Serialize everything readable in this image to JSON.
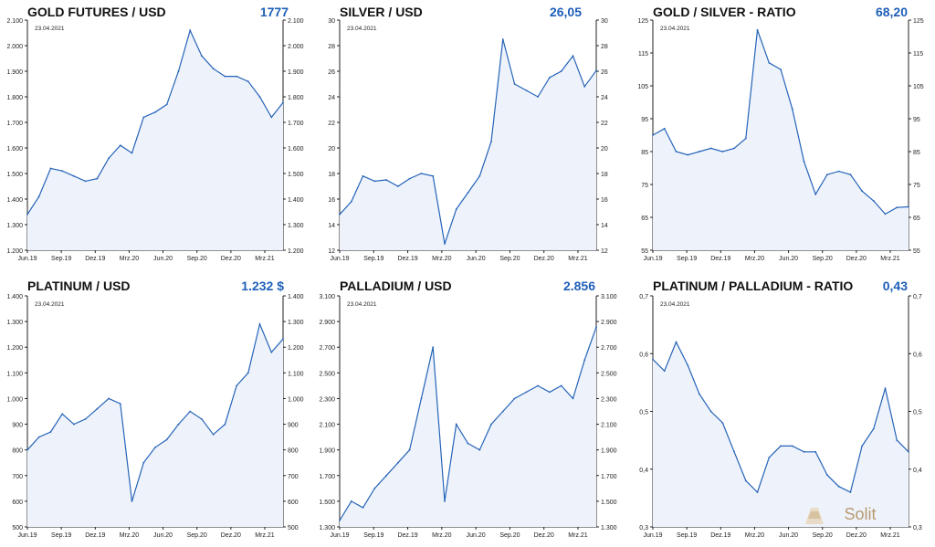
{
  "charts": [
    {
      "title": "GOLD FUTURES / USD",
      "value": "1777",
      "date": "23.04.2021",
      "ylim": [
        1200,
        2100
      ],
      "yticks": [
        "1.200",
        "1.300",
        "1.400",
        "1.500",
        "1.600",
        "1.700",
        "1.800",
        "1.900",
        "2.000",
        "2.100"
      ],
      "xticks": [
        "Jun.19",
        "Sep.19",
        "Dez.19",
        "Mrz.20",
        "Jun.20",
        "Sep.20",
        "Dez.20",
        "Mrz.21"
      ]
    },
    {
      "title": "SILVER / USD",
      "value": "26,05",
      "date": "23.04.2021",
      "ylim": [
        12,
        30
      ],
      "yticks": [
        "12",
        "14",
        "16",
        "18",
        "20",
        "22",
        "24",
        "26",
        "28",
        "30"
      ],
      "xticks": [
        "Jun.19",
        "Sep.19",
        "Dez.19",
        "Mrz.20",
        "Jun.20",
        "Sep.20",
        "Dez.20",
        "Mrz.21"
      ]
    },
    {
      "title": "GOLD / SILVER - RATIO",
      "value": "68,20",
      "date": "23.04.2021",
      "ylim": [
        55,
        125
      ],
      "yticks": [
        "55",
        "65",
        "75",
        "85",
        "95",
        "105",
        "115",
        "125"
      ],
      "xticks": [
        "Jun.19",
        "Sep.19",
        "Dez.19",
        "Mrz.20",
        "Jun.20",
        "Sep.20",
        "Dez.20",
        "Mrz.21"
      ]
    },
    {
      "title": "PLATINUM / USD",
      "value": "1.232 $",
      "date": "23.04.2021",
      "ylim": [
        500,
        1400
      ],
      "yticks": [
        "500",
        "600",
        "700",
        "800",
        "900",
        "1.000",
        "1.100",
        "1.200",
        "1.300",
        "1.400"
      ],
      "xticks": [
        "Jun.19",
        "Sep.19",
        "Dez.19",
        "Mrz.20",
        "Jun.20",
        "Sep.20",
        "Dez.20",
        "Mrz.21"
      ]
    },
    {
      "title": "PALLADIUM / USD",
      "value": "2.856",
      "date": "23.04.2021",
      "ylim": [
        1300,
        3100
      ],
      "yticks": [
        "1.300",
        "1.500",
        "1.700",
        "1.900",
        "2.100",
        "2.300",
        "2.500",
        "2.700",
        "2.900",
        "3.100"
      ],
      "xticks": [
        "Jun.19",
        "Sep.19",
        "Dez.19",
        "Mrz.20",
        "Jun.20",
        "Sep.20",
        "Dez.20",
        "Mrz.21"
      ]
    },
    {
      "title": "PLATINUM / PALLADIUM - RATIO",
      "value": "0,43",
      "date": "23.04.2021",
      "ylim": [
        0.3,
        0.7
      ],
      "yticks": [
        "0,3",
        "0,4",
        "0,5",
        "0,6",
        "0,7"
      ],
      "xticks": [
        "Jun.19",
        "Sep.19",
        "Dez.19",
        "Mrz.20",
        "Jun.20",
        "Sep.20",
        "Dez.20",
        "Mrz.21"
      ]
    }
  ],
  "chart_data": [
    {
      "type": "area",
      "title": "GOLD FUTURES / USD",
      "ylim": [
        1200,
        2100
      ],
      "x": [
        "Jun.19",
        "Jul.19",
        "Aug.19",
        "Sep.19",
        "Okt.19",
        "Nov.19",
        "Dez.19",
        "Jan.20",
        "Feb.20",
        "Mrz.20",
        "Apr.20",
        "Mai.20",
        "Jun.20",
        "Jul.20",
        "Aug.20",
        "Sep.20",
        "Okt.20",
        "Nov.20",
        "Dez.20",
        "Jan.21",
        "Feb.21",
        "Mrz.21",
        "Apr.21"
      ],
      "series": [
        {
          "values": [
            1340,
            1410,
            1520,
            1510,
            1490,
            1470,
            1480,
            1560,
            1610,
            1580,
            1720,
            1740,
            1770,
            1900,
            2060,
            1960,
            1910,
            1880,
            1880,
            1860,
            1800,
            1720,
            1777
          ]
        }
      ]
    },
    {
      "type": "area",
      "title": "SILVER / USD",
      "ylim": [
        12,
        30
      ],
      "x": [
        "Jun.19",
        "Jul.19",
        "Aug.19",
        "Sep.19",
        "Okt.19",
        "Nov.19",
        "Dez.19",
        "Jan.20",
        "Feb.20",
        "Mrz.20",
        "Apr.20",
        "Mai.20",
        "Jun.20",
        "Jul.20",
        "Aug.20",
        "Sep.20",
        "Okt.20",
        "Nov.20",
        "Dez.20",
        "Jan.21",
        "Feb.21",
        "Mrz.21",
        "Apr.21"
      ],
      "series": [
        {
          "values": [
            14.8,
            15.8,
            17.8,
            17.4,
            17.5,
            17.0,
            17.6,
            18.0,
            17.8,
            12.5,
            15.2,
            16.5,
            17.8,
            20.5,
            28.5,
            25.0,
            24.5,
            24.0,
            25.5,
            26.0,
            27.2,
            24.8,
            26.05
          ]
        }
      ]
    },
    {
      "type": "area",
      "title": "GOLD / SILVER - RATIO",
      "ylim": [
        55,
        125
      ],
      "x": [
        "Jun.19",
        "Jul.19",
        "Aug.19",
        "Sep.19",
        "Okt.19",
        "Nov.19",
        "Dez.19",
        "Jan.20",
        "Feb.20",
        "Mrz.20",
        "Apr.20",
        "Mai.20",
        "Jun.20",
        "Jul.20",
        "Aug.20",
        "Sep.20",
        "Okt.20",
        "Nov.20",
        "Dez.20",
        "Jan.21",
        "Feb.21",
        "Mrz.21",
        "Apr.21"
      ],
      "series": [
        {
          "values": [
            90,
            92,
            85,
            84,
            85,
            86,
            85,
            86,
            89,
            122,
            112,
            110,
            98,
            82,
            72,
            78,
            79,
            78,
            73,
            70,
            66,
            68,
            68.2
          ]
        }
      ]
    },
    {
      "type": "area",
      "title": "PLATINUM / USD",
      "ylim": [
        500,
        1400
      ],
      "x": [
        "Jun.19",
        "Jul.19",
        "Aug.19",
        "Sep.19",
        "Okt.19",
        "Nov.19",
        "Dez.19",
        "Jan.20",
        "Feb.20",
        "Mrz.20",
        "Apr.20",
        "Mai.20",
        "Jun.20",
        "Jul.20",
        "Aug.20",
        "Sep.20",
        "Okt.20",
        "Nov.20",
        "Dez.20",
        "Jan.21",
        "Feb.21",
        "Mrz.21",
        "Apr.21"
      ],
      "series": [
        {
          "values": [
            800,
            850,
            870,
            940,
            900,
            920,
            960,
            1000,
            980,
            600,
            750,
            810,
            840,
            900,
            950,
            920,
            860,
            900,
            1050,
            1100,
            1290,
            1180,
            1232
          ]
        }
      ]
    },
    {
      "type": "area",
      "title": "PALLADIUM / USD",
      "ylim": [
        1300,
        3100
      ],
      "x": [
        "Jun.19",
        "Jul.19",
        "Aug.19",
        "Sep.19",
        "Okt.19",
        "Nov.19",
        "Dez.19",
        "Jan.20",
        "Feb.20",
        "Mrz.20",
        "Apr.20",
        "Mai.20",
        "Jun.20",
        "Jul.20",
        "Aug.20",
        "Sep.20",
        "Okt.20",
        "Nov.20",
        "Dez.20",
        "Jan.21",
        "Feb.21",
        "Mrz.21",
        "Apr.21"
      ],
      "series": [
        {
          "values": [
            1350,
            1500,
            1450,
            1600,
            1700,
            1800,
            1900,
            2300,
            2700,
            1500,
            2100,
            1950,
            1900,
            2100,
            2200,
            2300,
            2350,
            2400,
            2350,
            2400,
            2300,
            2600,
            2856
          ]
        }
      ]
    },
    {
      "type": "area",
      "title": "PLATINUM / PALLADIUM - RATIO",
      "ylim": [
        0.3,
        0.7
      ],
      "x": [
        "Jun.19",
        "Jul.19",
        "Aug.19",
        "Sep.19",
        "Okt.19",
        "Nov.19",
        "Dez.19",
        "Jan.20",
        "Feb.20",
        "Mrz.20",
        "Apr.20",
        "Mai.20",
        "Jun.20",
        "Jul.20",
        "Aug.20",
        "Sep.20",
        "Okt.20",
        "Nov.20",
        "Dez.20",
        "Jan.21",
        "Feb.21",
        "Mrz.21",
        "Apr.21"
      ],
      "series": [
        {
          "values": [
            0.59,
            0.57,
            0.62,
            0.58,
            0.53,
            0.5,
            0.48,
            0.43,
            0.38,
            0.36,
            0.42,
            0.44,
            0.44,
            0.43,
            0.43,
            0.39,
            0.37,
            0.36,
            0.44,
            0.47,
            0.54,
            0.45,
            0.43
          ]
        }
      ]
    }
  ],
  "brand": {
    "logo": "Solit",
    "line_color": "#2563b8",
    "fill_color": "#eef3fb",
    "value_color": "#1f5fb8"
  }
}
